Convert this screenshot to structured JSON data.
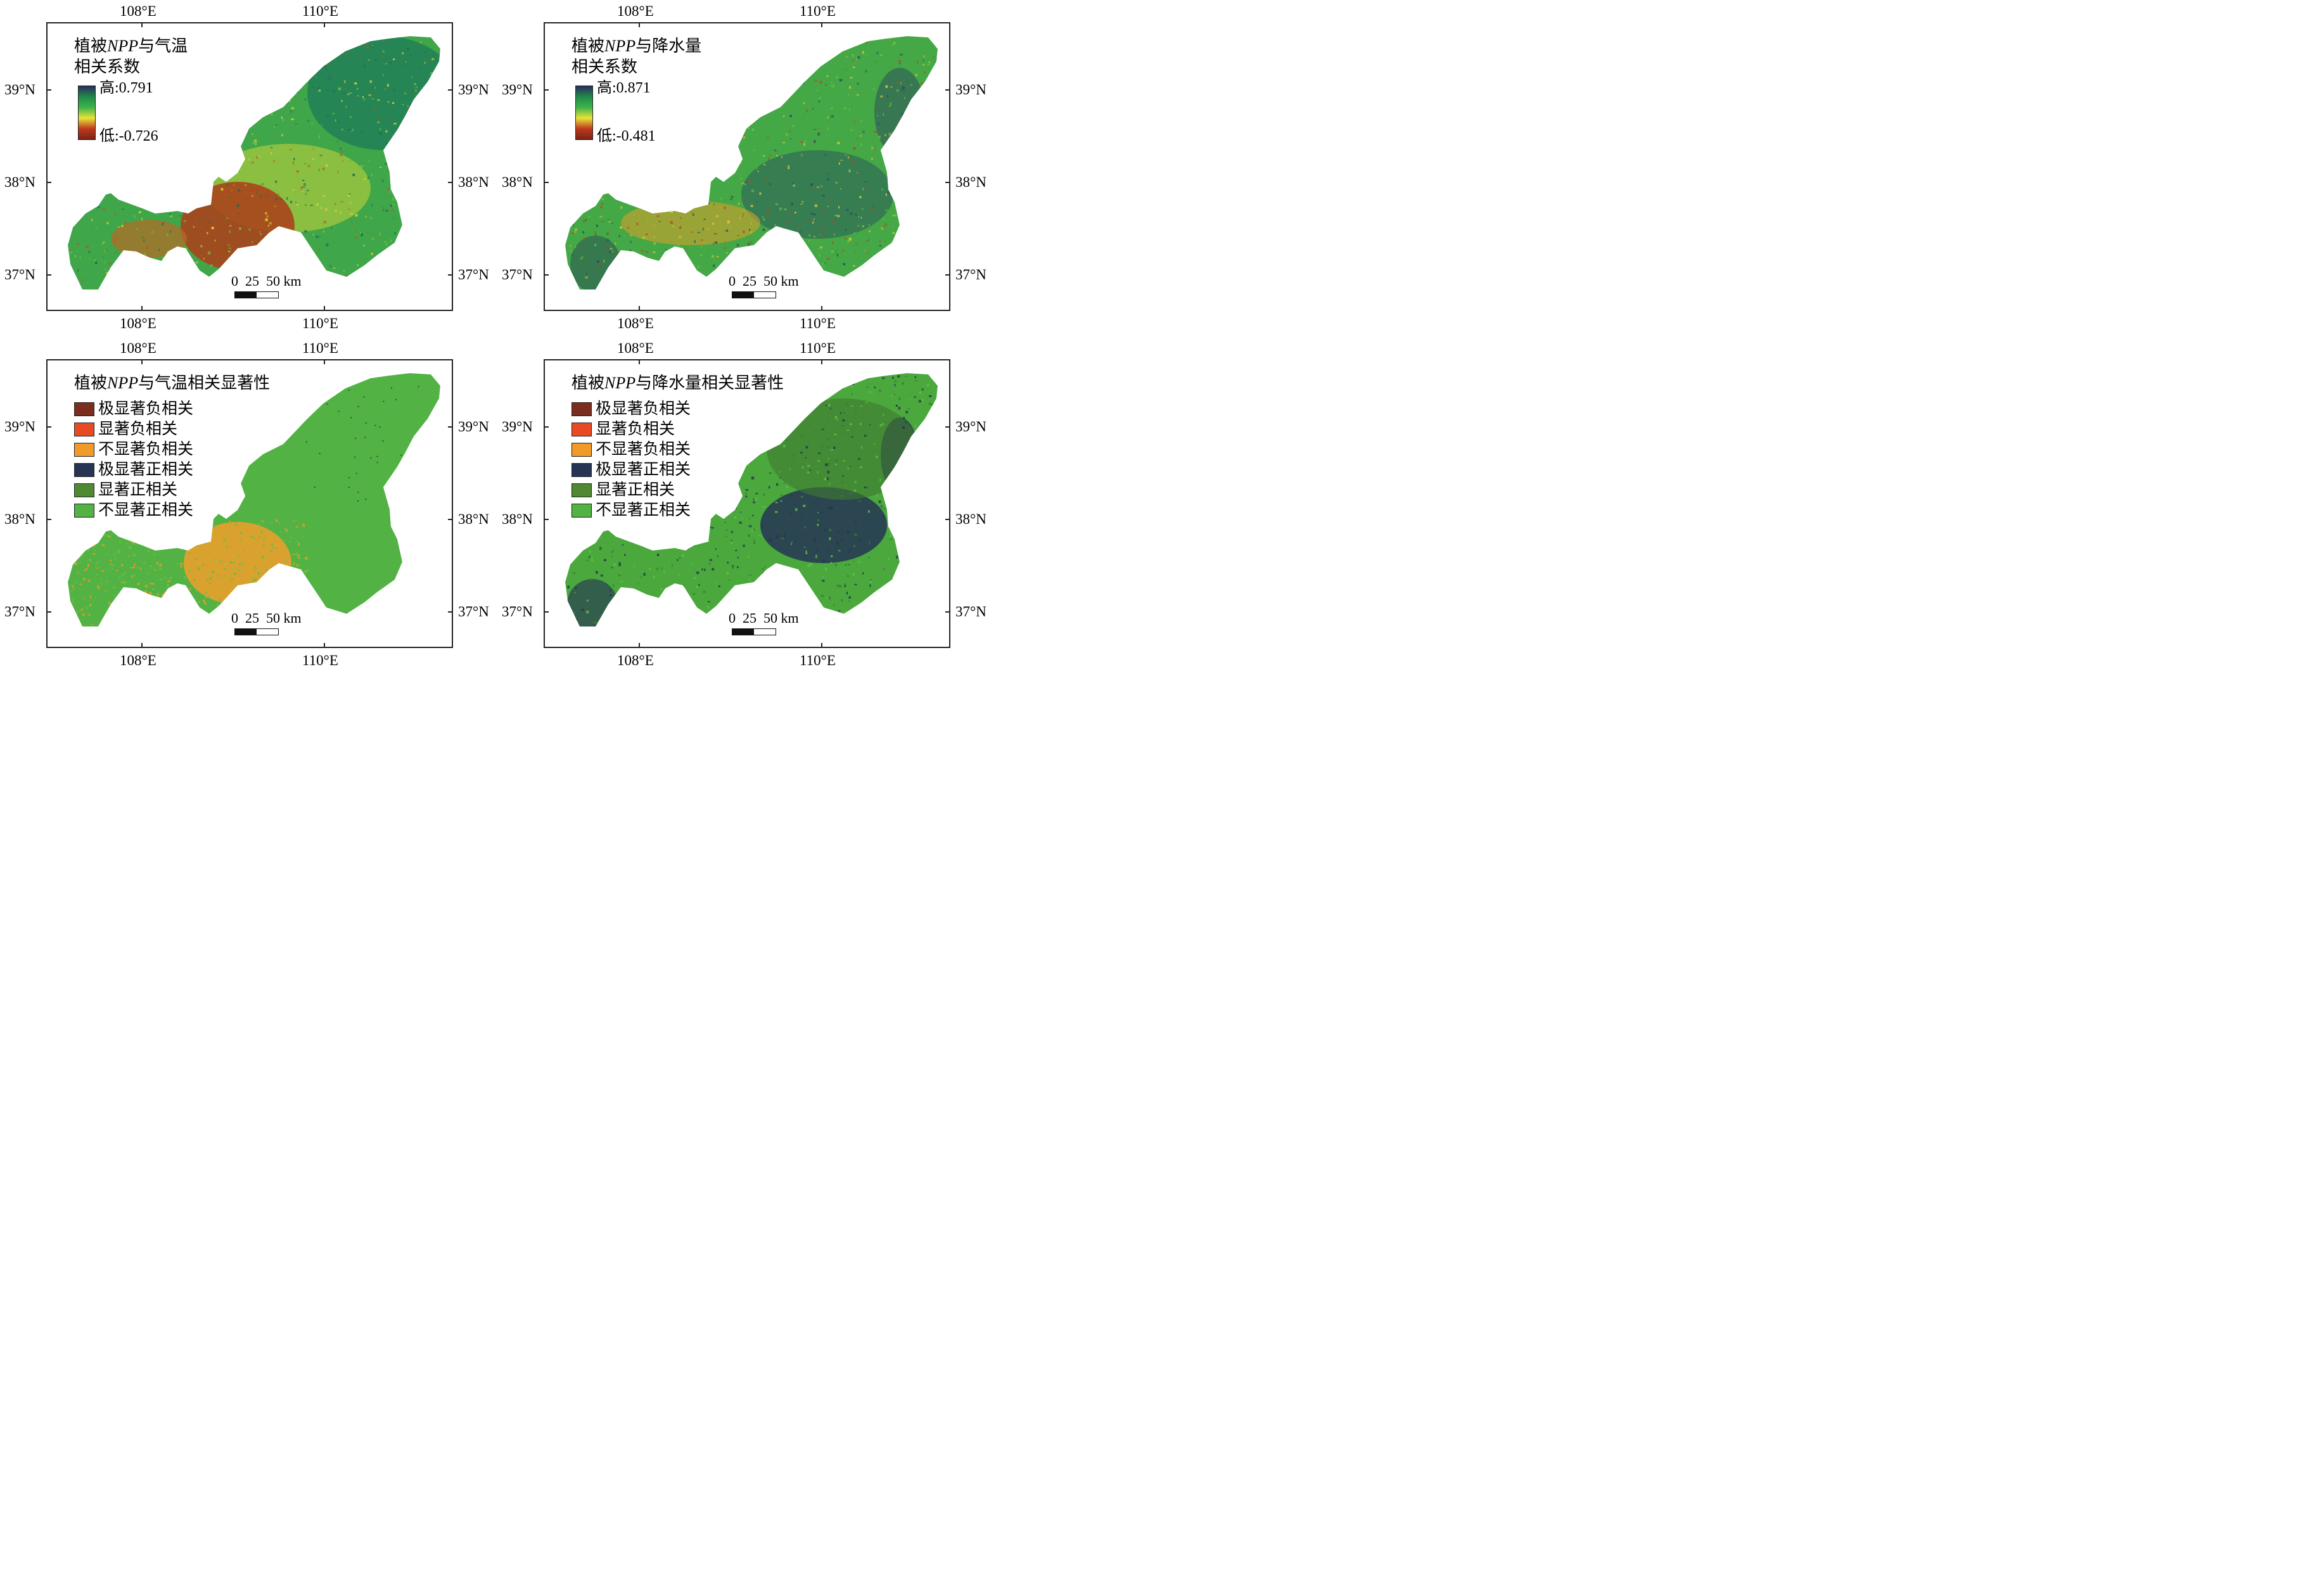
{
  "axes": {
    "lon_labels": [
      "108°E",
      "110°E"
    ],
    "lat_labels": [
      "39°N",
      "38°N",
      "37°N"
    ]
  },
  "panels": [
    {
      "id": "temp-corr",
      "legend_type": "continuous",
      "title_prefix": "植被",
      "title_italic": "NPP",
      "title_suffix": "与气温",
      "title_line2": "相关系数",
      "high_label": "高:0.791",
      "low_label": "低:-0.726",
      "ramp_colors": [
        "#2b2d5c",
        "#1f8a4a",
        "#3fb34a",
        "#e8e33a",
        "#c0391f",
        "#7a2412"
      ],
      "scale_label": "0  25  50 km"
    },
    {
      "id": "precip-corr",
      "legend_type": "continuous",
      "title_prefix": "植被",
      "title_italic": "NPP",
      "title_suffix": "与降水量",
      "title_line2": "相关系数",
      "high_label": "高:0.871",
      "low_label": "低:-0.481",
      "ramp_colors": [
        "#2b2d5c",
        "#1f8a4a",
        "#3fb34a",
        "#e8e33a",
        "#c0391f",
        "#7a2412"
      ],
      "scale_label": "0  25  50 km"
    },
    {
      "id": "temp-sig",
      "legend_type": "categorical",
      "title_prefix": "植被",
      "title_italic": "NPP",
      "title_suffix": "与气温相关显著性",
      "categories": [
        {
          "label": "极显著负相关",
          "color": "#7b2d1f"
        },
        {
          "label": "显著负相关",
          "color": "#e84a25"
        },
        {
          "label": "不显著负相关",
          "color": "#f09a2a"
        },
        {
          "label": "极显著正相关",
          "color": "#263554"
        },
        {
          "label": "显著正相关",
          "color": "#4f8a32"
        },
        {
          "label": "不显著正相关",
          "color": "#52b344"
        }
      ],
      "scale_label": "0  25  50 km"
    },
    {
      "id": "precip-sig",
      "legend_type": "categorical",
      "title_prefix": "植被",
      "title_italic": "NPP",
      "title_suffix": "与降水量相关显著性",
      "categories": [
        {
          "label": "极显著负相关",
          "color": "#7b2d1f"
        },
        {
          "label": "显著负相关",
          "color": "#e84a25"
        },
        {
          "label": "不显著负相关",
          "color": "#f09a2a"
        },
        {
          "label": "极显著正相关",
          "color": "#263554"
        },
        {
          "label": "显著正相关",
          "color": "#4f8a32"
        },
        {
          "label": "不显著正相关",
          "color": "#52b344"
        }
      ],
      "scale_label": "0  25  50 km"
    }
  ]
}
